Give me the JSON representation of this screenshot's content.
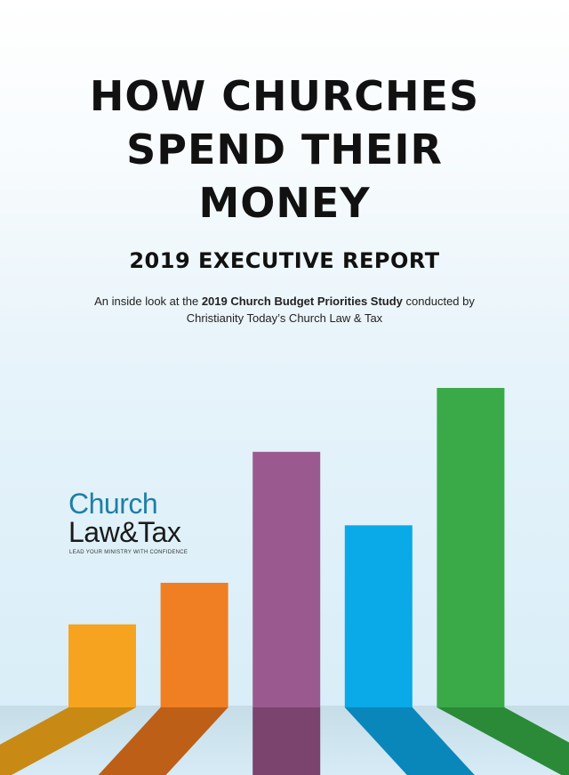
{
  "cover": {
    "title_lines": [
      "HOW CHURCHES",
      "SPEND THEIR",
      "MONEY"
    ],
    "subtitle": "2019 EXECUTIVE REPORT",
    "intro": {
      "prefix": "An inside look at the ",
      "bold": "2019 Church Budget Priorities Study",
      "suffix": " conducted by",
      "line2": "Christianity Today’s Church Law & Tax"
    }
  },
  "logo": {
    "church": "Church",
    "law_tax": "Law&Tax",
    "tagline": "LEAD YOUR MINISTRY WITH CONFIDENCE"
  },
  "chart_data": {
    "type": "bar",
    "title": "",
    "xlabel": "",
    "ylabel": "",
    "note": "decorative bars, no values printed",
    "bars": [
      {
        "relative_height": 0.26,
        "color": "#f6a41f"
      },
      {
        "relative_height": 0.39,
        "color": "#f07e22"
      },
      {
        "relative_height": 0.8,
        "color": "#9b5a8f"
      },
      {
        "relative_height": 0.57,
        "color": "#0aa9e8"
      },
      {
        "relative_height": 1.0,
        "color": "#3aaa48"
      }
    ],
    "shadow_colors": [
      "#c88a14",
      "#bd5f17",
      "#7a446f",
      "#0987bb",
      "#2a8a37"
    ]
  }
}
